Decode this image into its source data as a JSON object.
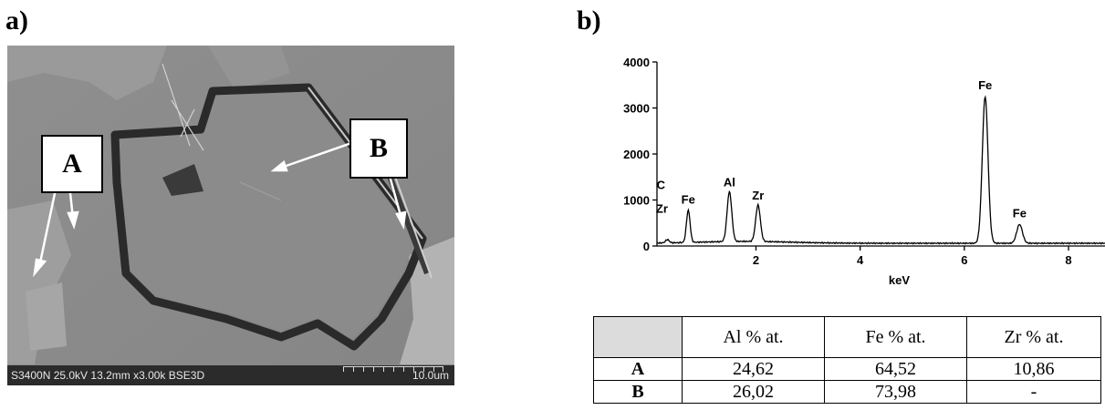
{
  "panels": {
    "a_label": "a)",
    "b_label": "b)"
  },
  "micrograph": {
    "caption": "S3400N 25.0kV 13.2mm x3.00k BSE3D",
    "scale_bar": "10.0um",
    "callouts": {
      "a": "A",
      "b": "B"
    }
  },
  "chart_data": {
    "type": "line",
    "xlabel": "keV",
    "ylabel": "",
    "xlim": [
      0.1,
      8.7
    ],
    "ylim": [
      0,
      4000
    ],
    "x_ticks": [
      2,
      4,
      6,
      8
    ],
    "y_ticks": [
      0,
      1000,
      2000,
      3000,
      4000
    ],
    "peaks": [
      {
        "label": "C",
        "x": 0.28,
        "y": 250
      },
      {
        "label": "Zr",
        "x": 0.3,
        "y": 130
      },
      {
        "label": "Fe",
        "x": 0.7,
        "y": 760
      },
      {
        "label": "Al",
        "x": 1.49,
        "y": 1140
      },
      {
        "label": "Zr",
        "x": 2.04,
        "y": 850
      },
      {
        "label": "Fe",
        "x": 6.4,
        "y": 3250
      },
      {
        "label": "Fe",
        "x": 7.06,
        "y": 470
      }
    ],
    "grid": false
  },
  "table": {
    "headers": [
      "",
      "Al % at.",
      "Fe % at.",
      "Zr % at."
    ],
    "rows": [
      {
        "label": "A",
        "values": [
          "24,62",
          "64,52",
          "10,86"
        ]
      },
      {
        "label": "B",
        "values": [
          "26,02",
          "73,98",
          "-"
        ]
      }
    ]
  }
}
